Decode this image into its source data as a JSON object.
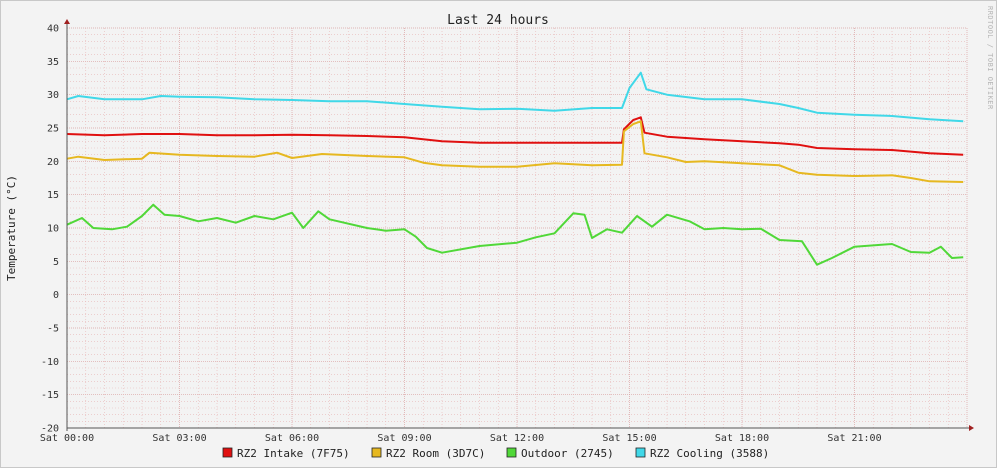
{
  "chart_data": {
    "type": "line",
    "title": "Last 24 hours",
    "ylabel": "Temperature (°C)",
    "watermark": "RRDTOOL / TOBI OETIKER",
    "xlim": [
      0,
      24
    ],
    "ylim": [
      -20,
      40
    ],
    "y_ticks": [
      -20,
      -15,
      -10,
      -5,
      0,
      5,
      10,
      15,
      20,
      25,
      30,
      35,
      40
    ],
    "x_ticks": [
      {
        "hour": 0,
        "label": "Sat 00:00"
      },
      {
        "hour": 3,
        "label": "Sat 03:00"
      },
      {
        "hour": 6,
        "label": "Sat 06:00"
      },
      {
        "hour": 9,
        "label": "Sat 09:00"
      },
      {
        "hour": 12,
        "label": "Sat 12:00"
      },
      {
        "hour": 15,
        "label": "Sat 15:00"
      },
      {
        "hour": 18,
        "label": "Sat 18:00"
      },
      {
        "hour": 21,
        "label": "Sat 21:00"
      }
    ],
    "grid": true,
    "legend_position": "bottom",
    "series": [
      {
        "name": "RZ2 Intake (7F75)",
        "color": "#e01010",
        "points": [
          [
            0,
            24.1
          ],
          [
            1,
            23.9
          ],
          [
            2,
            24.1
          ],
          [
            3,
            24.1
          ],
          [
            4,
            23.9
          ],
          [
            5,
            23.9
          ],
          [
            6,
            24.0
          ],
          [
            7,
            23.9
          ],
          [
            8,
            23.8
          ],
          [
            9,
            23.6
          ],
          [
            10,
            23.0
          ],
          [
            11,
            22.8
          ],
          [
            12,
            22.8
          ],
          [
            13,
            22.8
          ],
          [
            14,
            22.8
          ],
          [
            14.8,
            22.8
          ],
          [
            14.85,
            24.8
          ],
          [
            15.1,
            26.2
          ],
          [
            15.3,
            26.6
          ],
          [
            15.4,
            24.3
          ],
          [
            16,
            23.7
          ],
          [
            17,
            23.3
          ],
          [
            18,
            23.0
          ],
          [
            19,
            22.7
          ],
          [
            19.5,
            22.5
          ],
          [
            20,
            22.0
          ],
          [
            21,
            21.8
          ],
          [
            22,
            21.7
          ],
          [
            23,
            21.2
          ],
          [
            23.9,
            21.0
          ]
        ]
      },
      {
        "name": "RZ2 Room (3D7C)",
        "color": "#e6b820",
        "points": [
          [
            0,
            20.4
          ],
          [
            0.3,
            20.7
          ],
          [
            1,
            20.2
          ],
          [
            2,
            20.4
          ],
          [
            2.2,
            21.3
          ],
          [
            3,
            21.0
          ],
          [
            4,
            20.8
          ],
          [
            5,
            20.7
          ],
          [
            5.6,
            21.3
          ],
          [
            6,
            20.5
          ],
          [
            6.8,
            21.1
          ],
          [
            8,
            20.8
          ],
          [
            9,
            20.6
          ],
          [
            9.5,
            19.8
          ],
          [
            10,
            19.4
          ],
          [
            11,
            19.2
          ],
          [
            12,
            19.2
          ],
          [
            13,
            19.7
          ],
          [
            14,
            19.4
          ],
          [
            14.8,
            19.5
          ],
          [
            14.85,
            24.5
          ],
          [
            15.1,
            25.6
          ],
          [
            15.3,
            26.0
          ],
          [
            15.4,
            21.2
          ],
          [
            16,
            20.6
          ],
          [
            16.5,
            19.9
          ],
          [
            17,
            20.0
          ],
          [
            18,
            19.7
          ],
          [
            19,
            19.4
          ],
          [
            19.5,
            18.3
          ],
          [
            20,
            18.0
          ],
          [
            21,
            17.8
          ],
          [
            22,
            17.9
          ],
          [
            22.5,
            17.5
          ],
          [
            23,
            17.0
          ],
          [
            23.9,
            16.9
          ]
        ]
      },
      {
        "name": "Outdoor (2745)",
        "color": "#50d838",
        "points": [
          [
            0,
            10.5
          ],
          [
            0.4,
            11.5
          ],
          [
            0.7,
            10.0
          ],
          [
            1.2,
            9.8
          ],
          [
            1.6,
            10.2
          ],
          [
            2,
            11.8
          ],
          [
            2.3,
            13.5
          ],
          [
            2.6,
            12.0
          ],
          [
            3,
            11.8
          ],
          [
            3.5,
            11.0
          ],
          [
            4,
            11.5
          ],
          [
            4.5,
            10.8
          ],
          [
            5,
            11.8
          ],
          [
            5.5,
            11.3
          ],
          [
            6,
            12.3
          ],
          [
            6.3,
            10.0
          ],
          [
            6.7,
            12.5
          ],
          [
            7,
            11.3
          ],
          [
            8,
            10.0
          ],
          [
            8.5,
            9.6
          ],
          [
            9,
            9.8
          ],
          [
            9.3,
            8.7
          ],
          [
            9.6,
            7.0
          ],
          [
            10,
            6.3
          ],
          [
            11,
            7.3
          ],
          [
            12,
            7.8
          ],
          [
            12.5,
            8.6
          ],
          [
            13,
            9.2
          ],
          [
            13.5,
            12.2
          ],
          [
            13.8,
            12.0
          ],
          [
            14,
            8.5
          ],
          [
            14.4,
            9.8
          ],
          [
            14.8,
            9.3
          ],
          [
            15.2,
            11.8
          ],
          [
            15.6,
            10.2
          ],
          [
            16,
            12.0
          ],
          [
            16.6,
            11.0
          ],
          [
            17,
            9.8
          ],
          [
            17.5,
            10.0
          ],
          [
            18,
            9.8
          ],
          [
            18.5,
            9.9
          ],
          [
            19,
            8.2
          ],
          [
            19.6,
            8.0
          ],
          [
            20,
            4.5
          ],
          [
            20.4,
            5.5
          ],
          [
            21,
            7.2
          ],
          [
            22,
            7.6
          ],
          [
            22.5,
            6.4
          ],
          [
            23,
            6.3
          ],
          [
            23.3,
            7.2
          ],
          [
            23.6,
            5.5
          ],
          [
            23.9,
            5.6
          ]
        ]
      },
      {
        "name": "RZ2 Cooling (3588)",
        "color": "#40d8e8",
        "points": [
          [
            0,
            29.3
          ],
          [
            0.3,
            29.8
          ],
          [
            1,
            29.3
          ],
          [
            2,
            29.3
          ],
          [
            2.5,
            29.8
          ],
          [
            3,
            29.7
          ],
          [
            4,
            29.6
          ],
          [
            5,
            29.3
          ],
          [
            6,
            29.2
          ],
          [
            7,
            29.0
          ],
          [
            8,
            29.0
          ],
          [
            9,
            28.6
          ],
          [
            10,
            28.2
          ],
          [
            11,
            27.8
          ],
          [
            12,
            27.9
          ],
          [
            13,
            27.6
          ],
          [
            14,
            28.0
          ],
          [
            14.8,
            28.0
          ],
          [
            15.0,
            31.0
          ],
          [
            15.3,
            33.3
          ],
          [
            15.45,
            30.8
          ],
          [
            16,
            30.0
          ],
          [
            17,
            29.3
          ],
          [
            18,
            29.3
          ],
          [
            19,
            28.6
          ],
          [
            19.5,
            28.0
          ],
          [
            20,
            27.3
          ],
          [
            21,
            27.0
          ],
          [
            22,
            26.8
          ],
          [
            23,
            26.3
          ],
          [
            23.9,
            26.0
          ]
        ]
      }
    ]
  }
}
